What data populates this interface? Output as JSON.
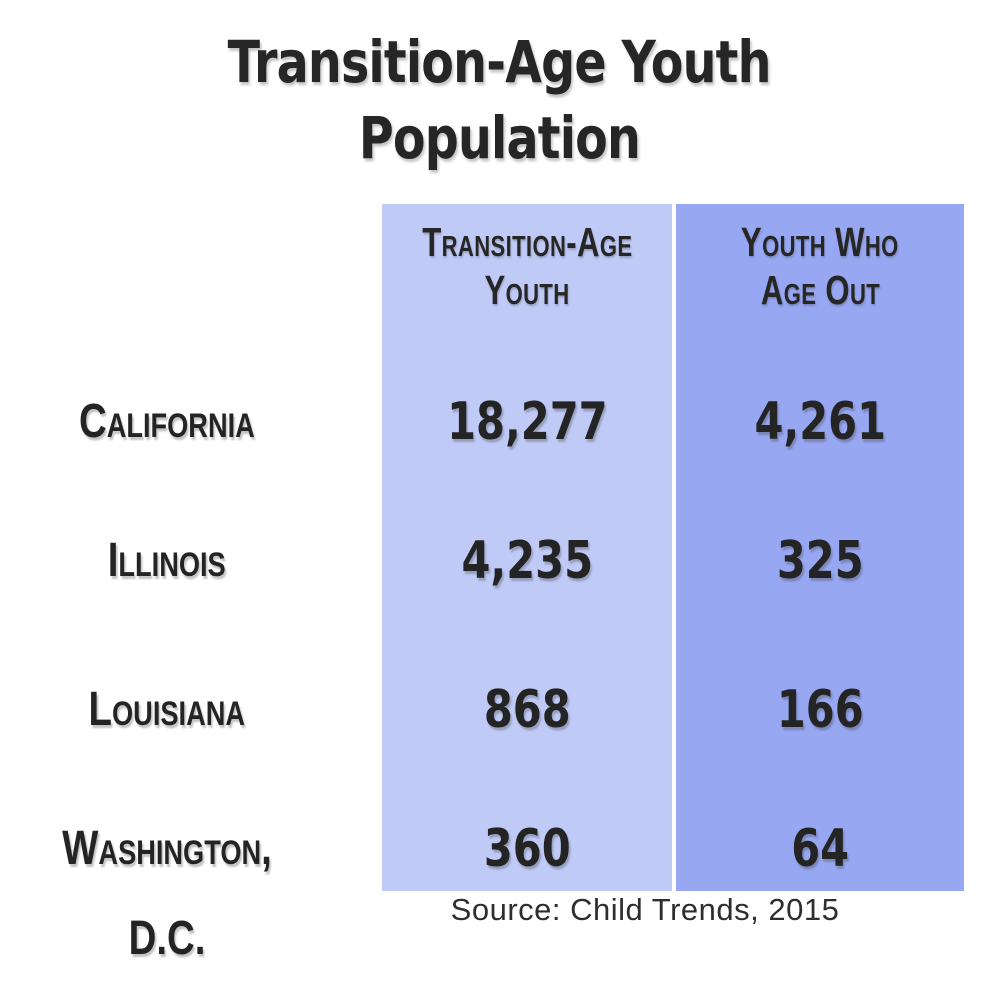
{
  "title": {
    "line1": "Transition-Age Youth",
    "line2": "Population"
  },
  "columns": [
    {
      "header_line1": "Transition-Age",
      "header_line2": "Youth",
      "bg_color": "#bfcaf7"
    },
    {
      "header_line1": "Youth Who",
      "header_line2": "Age Out",
      "bg_color": "#97a7f2"
    }
  ],
  "rows": [
    {
      "state": "California",
      "transition_age_youth": "18,277",
      "youth_who_age_out": "4,261"
    },
    {
      "state": "Illinois",
      "transition_age_youth": "4,235",
      "youth_who_age_out": "325"
    },
    {
      "state": "Louisiana",
      "transition_age_youth": "868",
      "youth_who_age_out": "166"
    },
    {
      "state": "Washington, D.C.",
      "transition_age_youth": "360",
      "youth_who_age_out": "64"
    }
  ],
  "source_note": "Source: Child Trends, 2015",
  "colors": {
    "background": "#ffffff",
    "text": "#262626",
    "column1_bg": "#bfcaf7",
    "column2_bg": "#97a7f2"
  },
  "chart_data": {
    "type": "table",
    "title": "Transition-Age Youth Population",
    "categories": [
      "California",
      "Illinois",
      "Louisiana",
      "Washington, D.C."
    ],
    "series": [
      {
        "name": "Transition-Age Youth",
        "values": [
          18277,
          4235,
          868,
          360
        ]
      },
      {
        "name": "Youth Who Age Out",
        "values": [
          4261,
          325,
          166,
          64
        ]
      }
    ],
    "source": "Source: Child Trends, 2015",
    "legend_position": "column headers",
    "grid": false
  }
}
